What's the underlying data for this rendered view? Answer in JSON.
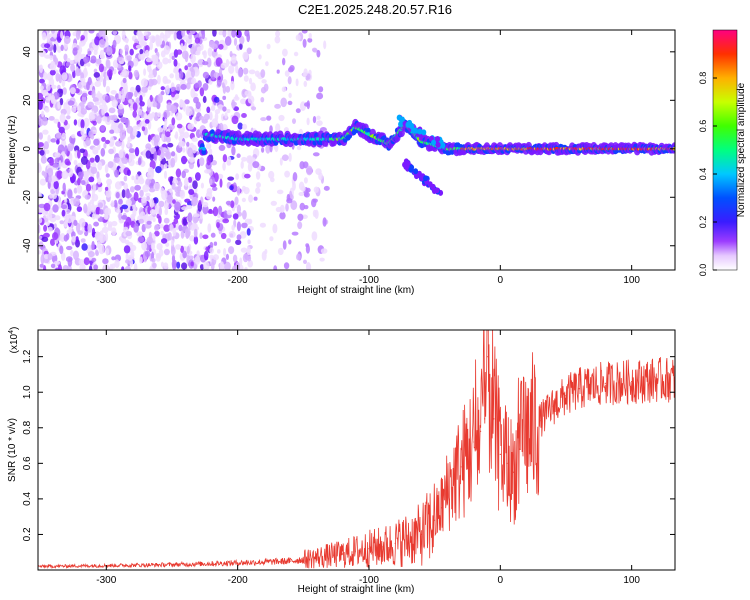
{
  "title": "C2E1.2025.248.20.57.R16",
  "chart_data": [
    {
      "type": "heatmap",
      "xlabel": "Height of straight line (km)",
      "ylabel": "Frequency (Hz)",
      "xlim": [
        -352,
        133
      ],
      "ylim": [
        -50,
        49
      ],
      "xticks": [
        -300,
        -200,
        -100,
        0,
        100
      ],
      "yticks": [
        -40,
        -20,
        0,
        20,
        40
      ],
      "colorbar": {
        "label": "Normalized spectral amplitude",
        "range": [
          0,
          1
        ],
        "ticks": [
          "0.0",
          "0.2",
          "0.4",
          "0.6",
          "0.8"
        ]
      },
      "ridge": [
        {
          "x": -225,
          "y": 6
        },
        {
          "x": -200,
          "y": 4
        },
        {
          "x": -180,
          "y": 4
        },
        {
          "x": -150,
          "y": 4
        },
        {
          "x": -120,
          "y": 4
        },
        {
          "x": -110,
          "y": 9
        },
        {
          "x": -100,
          "y": 6
        },
        {
          "x": -85,
          "y": 2
        },
        {
          "x": -72,
          "y": 10
        },
        {
          "x": -60,
          "y": 3
        },
        {
          "x": -40,
          "y": 0
        },
        {
          "x": -20,
          "y": 0
        },
        {
          "x": 0,
          "y": 0
        },
        {
          "x": 50,
          "y": 0
        },
        {
          "x": 100,
          "y": 0
        },
        {
          "x": 133,
          "y": 0
        }
      ]
    },
    {
      "type": "line",
      "xlabel": "Height of straight line (km)",
      "ylabel": "SNR (10 * v/v)",
      "yscale_label": "(x10",
      "yscale_exponent": "4",
      "xlim": [
        -352,
        133
      ],
      "ylim": [
        0,
        13500
      ],
      "xticks": [
        -300,
        -200,
        -100,
        0,
        100
      ],
      "yticks": [
        "0.2",
        "0.4",
        "0.6",
        "0.8",
        "1.0",
        "1.2"
      ],
      "color": "#e83a30",
      "series": [
        {
          "x": [
            -352,
            -300,
            -250,
            -200,
            -160,
            -140,
            -120,
            -100,
            -90,
            -80,
            -60,
            -50,
            -45,
            -40,
            -35,
            -30,
            -25,
            -20,
            -15,
            -12,
            -10,
            -5,
            0,
            5,
            10,
            15,
            20,
            30,
            40,
            50,
            60,
            80,
            100,
            120,
            133
          ],
          "values": [
            200,
            250,
            300,
            400,
            500,
            700,
            900,
            1200,
            1300,
            1500,
            2000,
            2800,
            3500,
            4500,
            5200,
            5800,
            6500,
            7200,
            7800,
            8500,
            12000,
            8500,
            6500,
            6000,
            5500,
            6800,
            7600,
            8400,
            9200,
            9800,
            10200,
            10500,
            10600,
            10700,
            10700
          ]
        }
      ]
    }
  ]
}
